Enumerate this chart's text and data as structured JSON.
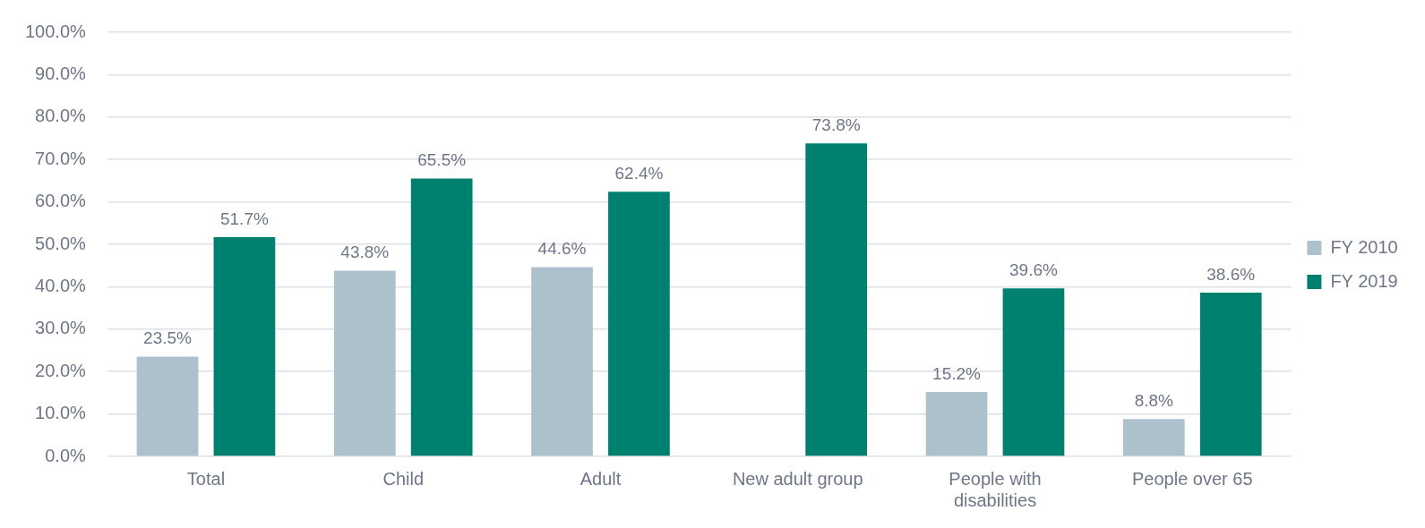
{
  "chart_data": {
    "type": "bar",
    "categories": [
      "Total",
      "Child",
      "Adult",
      "New adult group",
      "People with disabilities",
      "People over 65"
    ],
    "series": [
      {
        "name": "FY 2010",
        "color": "#adc1cc",
        "values": [
          23.5,
          43.8,
          44.6,
          null,
          15.2,
          8.8
        ],
        "value_labels": [
          "23.5%",
          "43.8%",
          "44.6%",
          null,
          "15.2%",
          "8.8%"
        ]
      },
      {
        "name": "FY 2019",
        "color": "#00806e",
        "values": [
          51.7,
          65.5,
          62.4,
          73.8,
          39.6,
          38.6
        ],
        "value_labels": [
          "51.7%",
          "65.5%",
          "62.4%",
          "73.8%",
          "39.6%",
          "38.6%"
        ]
      }
    ],
    "ylim": [
      0,
      100
    ],
    "yticks": [
      {
        "value": 0,
        "label": "0.0%"
      },
      {
        "value": 10,
        "label": "10.0%"
      },
      {
        "value": 20,
        "label": "20.0%"
      },
      {
        "value": 30,
        "label": "30.0%"
      },
      {
        "value": 40,
        "label": "40.0%"
      },
      {
        "value": 50,
        "label": "50.0%"
      },
      {
        "value": 60,
        "label": "60.0%"
      },
      {
        "value": 70,
        "label": "70.0%"
      },
      {
        "value": 80,
        "label": "80.0%"
      },
      {
        "value": 90,
        "label": "90.0%"
      },
      {
        "value": 100,
        "label": "100.0%"
      }
    ],
    "grid": "y",
    "legend": "right"
  }
}
